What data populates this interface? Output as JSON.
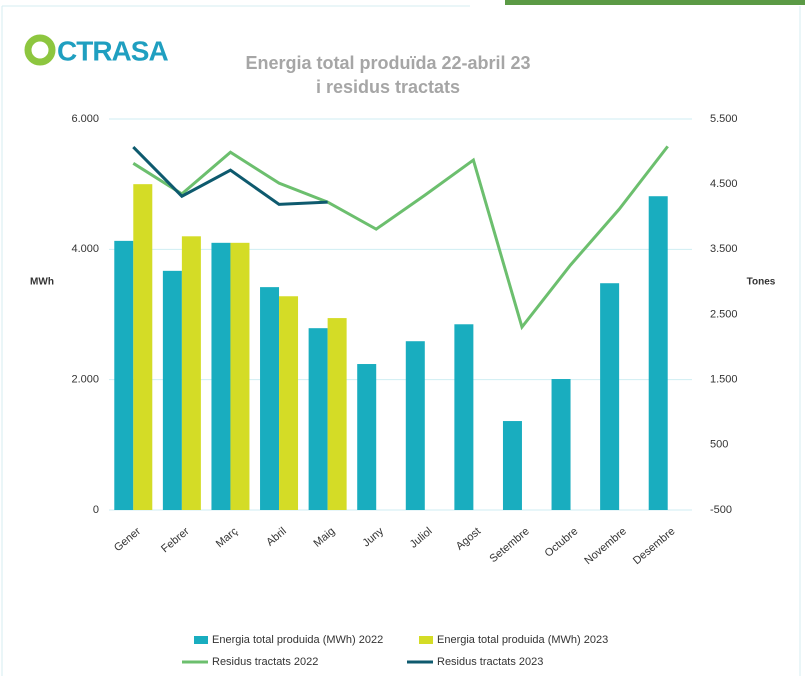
{
  "chart_data": {
    "type": "bar",
    "logo": "CTRASA",
    "title": "Energia total produïda 22-abril 23",
    "subtitle": "i residus tractats",
    "y_label": "MWh",
    "y2_label": "Tones",
    "categories": [
      "Gener",
      "Febrer",
      "Març",
      "Abril",
      "Maig",
      "Juny",
      "Juliol",
      "Agost",
      "Setembre",
      "Octubre",
      "Novembre",
      "Desembre"
    ],
    "ylim": [
      0,
      6000
    ],
    "yticks": [
      0,
      {
        "value": 2000,
        "label": "2.000"
      },
      {
        "value": 4000,
        "label": "4.000"
      },
      {
        "value": 6000,
        "label": "6.000"
      }
    ],
    "y2lim": [
      -500,
      5500
    ],
    "y2ticks": [
      -500,
      500,
      {
        "value": 1500,
        "label": "1.500"
      },
      {
        "value": 2500,
        "label": "2.500"
      },
      {
        "value": 3500,
        "label": "3.500"
      },
      {
        "value": 4500,
        "label": "4.500"
      },
      {
        "value": 5500,
        "label": "5.500"
      }
    ],
    "grid": true,
    "series": [
      {
        "name": "Energia total produida (MWh) 2022",
        "type": "bar",
        "color": "#19adbf",
        "values": [
          4130,
          3670,
          4100,
          3420,
          2790,
          2240,
          2590,
          2850,
          1365,
          2010,
          3480,
          4815
        ]
      },
      {
        "name": "Energia total produida (MWh) 2023",
        "type": "bar",
        "color": "#d4dc26",
        "values": [
          5000,
          4200,
          4100,
          3280,
          2945,
          null,
          null,
          null,
          null,
          null,
          null,
          null
        ]
      },
      {
        "name": "Residus tractats 2022",
        "type": "line",
        "axis": "y2",
        "color": "#6cbf6e",
        "values": [
          4820,
          4350,
          4990,
          4515,
          4225,
          3810,
          4330,
          4870,
          2307,
          3260,
          4115,
          5080
        ]
      },
      {
        "name": "Residus tractats 2023",
        "type": "line",
        "axis": "y2",
        "color": "#0e5a6e",
        "values": [
          5070,
          4315,
          4715,
          4190,
          4225,
          null,
          null,
          null,
          null,
          null,
          null,
          null
        ]
      }
    ]
  }
}
